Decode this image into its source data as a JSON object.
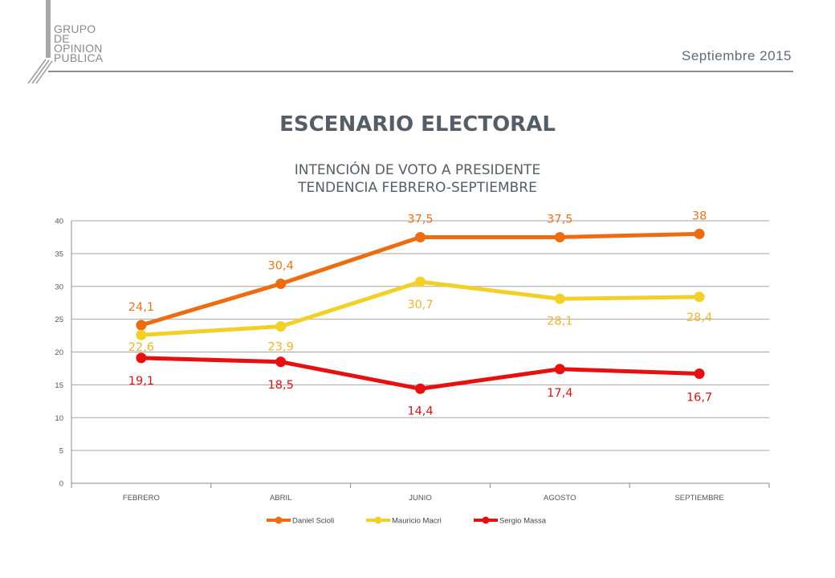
{
  "header": {
    "logo_lines": [
      "GRUPO",
      "DE",
      "OPINION",
      "PUBLICA"
    ],
    "date": "Septiembre 2015"
  },
  "title": "ESCENARIO ELECTORAL",
  "subtitle_line1": "INTENCIÓN DE VOTO A PRESIDENTE",
  "subtitle_line2": "TENDENCIA FEBRERO-SEPTIEMBRE",
  "chart_data": {
    "type": "line",
    "categories": [
      "FEBRERO",
      "ABRIL",
      "JUNIO",
      "AGOSTO",
      "SEPTIEMBRE"
    ],
    "ylim": [
      0,
      40
    ],
    "yticks": [
      0,
      5,
      10,
      15,
      20,
      25,
      30,
      35,
      40
    ],
    "grid": true,
    "legend_position": "bottom",
    "series": [
      {
        "name": "Daniel Scioli",
        "color": "#ed6c12",
        "values": [
          24.1,
          30.4,
          37.5,
          37.5,
          38
        ],
        "labels": [
          "24,1",
          "30,4",
          "37,5",
          "37,5",
          "38"
        ]
      },
      {
        "name": "Mauricio Macri",
        "color": "#f2d027",
        "values": [
          22.6,
          23.9,
          30.7,
          28.1,
          28.4
        ],
        "labels": [
          "22,6",
          "23,9",
          "30,7",
          "28,1",
          "28,4"
        ]
      },
      {
        "name": "Sergio Massa",
        "color": "#e61010",
        "values": [
          19.1,
          18.5,
          14.4,
          17.4,
          16.7
        ],
        "labels": [
          "19,1",
          "18,5",
          "14,4",
          "17,4",
          "16,7"
        ]
      }
    ],
    "label_colors": [
      "#e9741c",
      "#e9b532",
      "#d51414"
    ]
  }
}
